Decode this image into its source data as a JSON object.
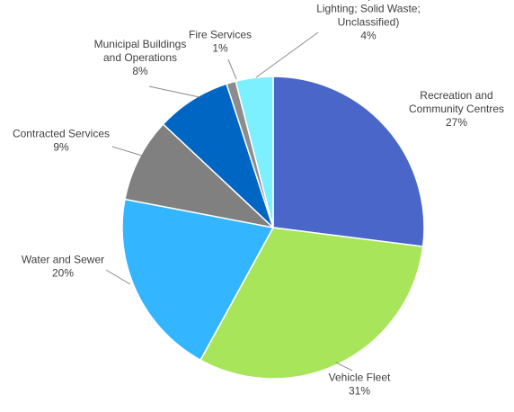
{
  "chart_data": {
    "type": "pie",
    "start_angle_deg": 0,
    "direction": "clockwise",
    "title": "",
    "slices": [
      {
        "name": "Recreation and Community Centres",
        "label_lines": [
          "Recreation and",
          "Community Centres"
        ],
        "value": 27,
        "value_label": "27%",
        "color": "#4A66C8"
      },
      {
        "name": "Vehicle Fleet",
        "label_lines": [
          "Vehicle Fleet"
        ],
        "value": 31,
        "value_label": "31%",
        "color": "#A8E55A"
      },
      {
        "name": "Water and Sewer",
        "label_lines": [
          "Water and Sewer"
        ],
        "value": 20,
        "value_label": "20%",
        "color": "#33B5FF"
      },
      {
        "name": "Contracted Services",
        "label_lines": [
          "Contracted Services"
        ],
        "value": 9,
        "value_label": "9%",
        "color": "#808080"
      },
      {
        "name": "Municipal Buildings and Operations",
        "label_lines": [
          "Municipal Buildings",
          "and Operations"
        ],
        "value": 8,
        "value_label": "8%",
        "color": "#0066C4"
      },
      {
        "name": "Fire Services",
        "label_lines": [
          "Fire Services"
        ],
        "value": 1,
        "value_label": "1%",
        "color": "#8C8C8C"
      },
      {
        "name": "Other (Parks; Lighting; Solid Waste; Unclassified)",
        "label_lines": [
          "Other (Parks;",
          "Lighting; Solid Waste;",
          "Unclassified)"
        ],
        "value": 4,
        "value_label": "4%",
        "color": "#7DF0FF"
      }
    ]
  }
}
